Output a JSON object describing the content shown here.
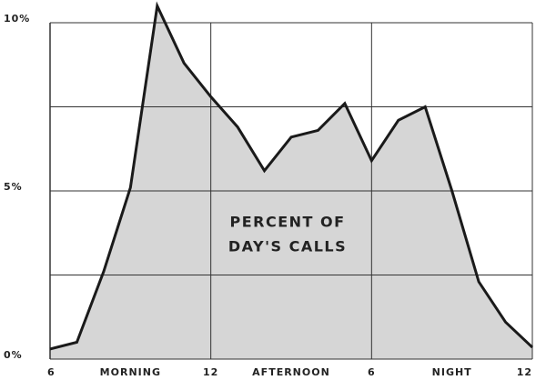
{
  "chart_data": {
    "type": "area",
    "annotation": [
      "PERCENT OF",
      "DAY'S CALLS"
    ],
    "x": [
      6,
      7,
      8,
      9,
      10,
      11,
      12,
      13,
      14,
      15,
      16,
      17,
      18,
      19,
      20,
      21,
      22,
      23,
      24
    ],
    "values": [
      0.3,
      0.5,
      2.6,
      5.1,
      10.5,
      8.8,
      7.8,
      6.9,
      5.6,
      6.6,
      6.8,
      7.6,
      5.9,
      7.1,
      7.5,
      5.0,
      2.3,
      1.1,
      0.35
    ],
    "color": "#d6d6d6",
    "line_color": "#1a1a1a",
    "xlim": [
      6,
      24
    ],
    "xticks": [
      6,
      12,
      {
        "value": 18,
        "label": "6"
      },
      {
        "value": 24,
        "label": "12"
      }
    ],
    "x_period_labels": [
      "MORNING",
      "AFTERNOON",
      "NIGHT"
    ],
    "ylim": [
      0,
      10
    ],
    "yticks": [
      {
        "value": 0,
        "label": "0%"
      },
      {
        "value": 5,
        "label": "5%"
      },
      {
        "value": 10,
        "label": "10%"
      }
    ],
    "minor_yticks": [
      2.5,
      7.5
    ],
    "grid": true
  }
}
